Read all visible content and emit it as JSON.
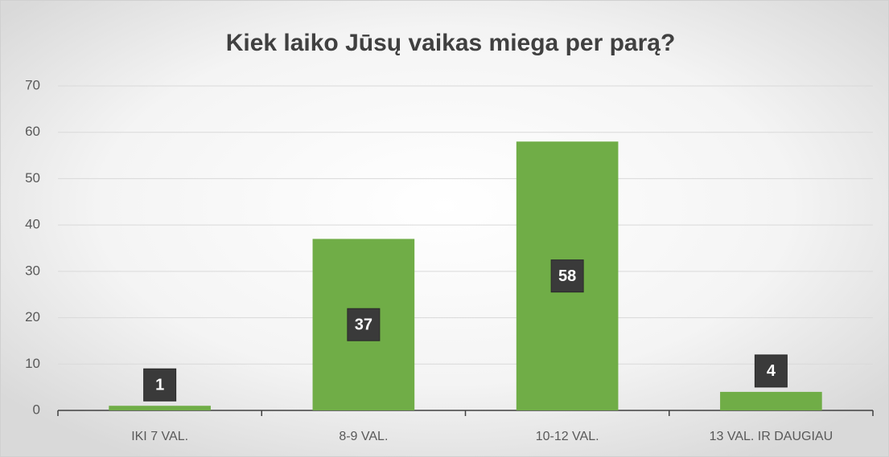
{
  "chart_data": {
    "type": "bar",
    "title": "Kiek laiko Jūsų vaikas miega per parą?",
    "categories": [
      "IKI 7 VAL.",
      "8-9 VAL.",
      "10-12 VAL.",
      "13 VAL. IR DAUGIAU"
    ],
    "values": [
      1,
      37,
      58,
      4
    ],
    "color": "#70ad47",
    "ylim": [
      0,
      70
    ],
    "yticks": [
      0,
      10,
      20,
      30,
      40,
      50,
      60,
      70
    ],
    "grid": true
  }
}
